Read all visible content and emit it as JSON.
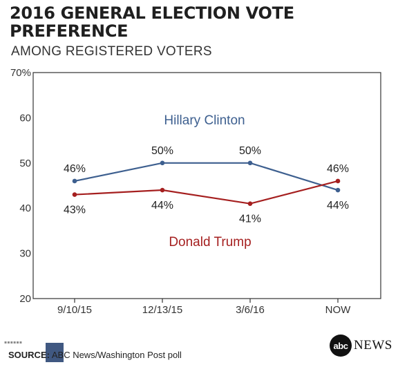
{
  "header": {
    "title": "2016 GENERAL ELECTION VOTE PREFERENCE",
    "subtitle": "AMONG REGISTERED VOTERS"
  },
  "chart_data": {
    "type": "line",
    "title": "2016 GENERAL ELECTION VOTE PREFERENCE",
    "subtitle": "AMONG REGISTERED VOTERS",
    "categories": [
      "9/10/15",
      "12/13/15",
      "3/6/16",
      "NOW"
    ],
    "ylim": [
      20,
      70
    ],
    "y_ticks": [
      "70%",
      "60",
      "50",
      "40",
      "30",
      "20"
    ],
    "grid": false,
    "series": [
      {
        "name": "Hillary Clinton",
        "color": "#3d5f8f",
        "values": [
          46,
          50,
          50,
          44
        ],
        "labels": [
          "46%",
          "50%",
          "50%",
          "44%"
        ]
      },
      {
        "name": "Donald Trump",
        "color": "#a51f1f",
        "values": [
          43,
          44,
          41,
          46
        ],
        "labels": [
          "43%",
          "44%",
          "41%",
          "46%"
        ]
      }
    ]
  },
  "footer": {
    "source_label": "SOURCE:",
    "source_text": " ABC News/Washington Post poll",
    "brand_mark": "abc",
    "brand_name": "NEWS"
  }
}
